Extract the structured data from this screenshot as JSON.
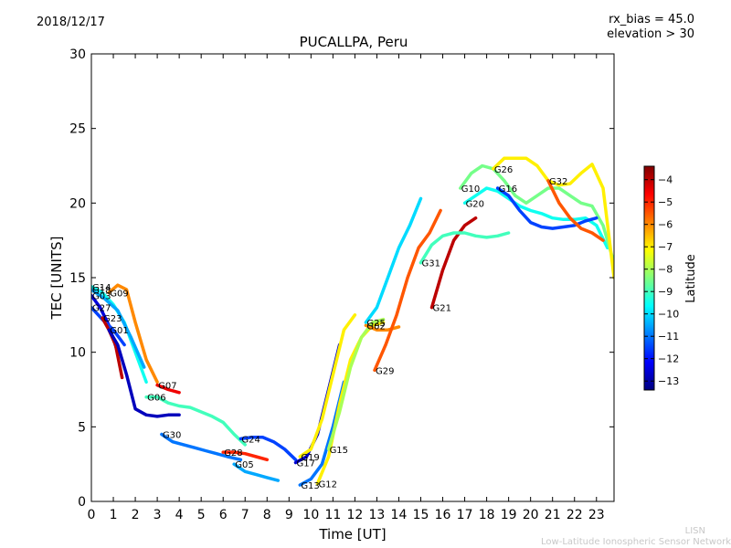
{
  "header": {
    "date": "2018/12/17",
    "title": "PUCALLPA, Peru",
    "rx_bias": "rx_bias = 45.0",
    "elevation": "elevation > 30"
  },
  "footer": {
    "credit_line1": "LISN",
    "credit_line2": "Low-Latitude Ionospheric Sensor Network"
  },
  "colorbar": {
    "label": "Latitude",
    "ticks": [
      -4,
      -5,
      -6,
      -7,
      -8,
      -9,
      -10,
      -11,
      -12,
      -13
    ],
    "range": [
      -13.4,
      -3.4
    ],
    "colormap": [
      "#00007f",
      "#0000ff",
      "#007fff",
      "#00ffff",
      "#7fff7f",
      "#ffff00",
      "#ff7f00",
      "#ff0000",
      "#7f0000"
    ]
  },
  "chart_data": {
    "type": "scatter",
    "title": "PUCALLPA, Peru",
    "xlabel": "Time [UT]",
    "ylabel": "TEC [UNITS]",
    "xlim": [
      0,
      23.8
    ],
    "ylim": [
      0,
      30
    ],
    "xticks": [
      0,
      1,
      2,
      3,
      4,
      5,
      6,
      7,
      8,
      9,
      10,
      11,
      12,
      13,
      14,
      15,
      16,
      17,
      18,
      19,
      20,
      21,
      22,
      23
    ],
    "yticks": [
      0,
      5,
      10,
      15,
      20,
      25,
      30
    ],
    "grid": false,
    "series": [
      {
        "name": "G14",
        "lat": -9.5,
        "x": [
          0,
          0.5,
          1,
          1.5,
          2,
          2.5
        ],
        "y": [
          14.4,
          14,
          13.2,
          12,
          10,
          8
        ]
      },
      {
        "name": "G18",
        "lat": -10.5,
        "x": [
          0,
          0.6,
          1.2,
          1.8,
          2.4
        ],
        "y": [
          14.2,
          13.6,
          12.8,
          11,
          9
        ]
      },
      {
        "name": "G03",
        "lat": -12.5,
        "x": [
          0,
          0.4,
          0.8,
          1.2
        ],
        "y": [
          13.8,
          13,
          11.8,
          10
        ]
      },
      {
        "name": "G27",
        "lat": -11.5,
        "x": [
          0,
          0.5,
          1,
          1.5
        ],
        "y": [
          13,
          12.2,
          11.5,
          10.5
        ]
      },
      {
        "name": "G09",
        "lat": -6,
        "x": [
          0.8,
          1.2,
          1.6,
          2,
          2.5,
          3
        ],
        "y": [
          14,
          14.5,
          14.2,
          12,
          9.5,
          8
        ]
      },
      {
        "name": "G23",
        "lat": -4,
        "x": [
          0.5,
          0.8,
          1.1,
          1.4
        ],
        "y": [
          12.3,
          11.5,
          10.5,
          8.3
        ]
      },
      {
        "name": "G01",
        "lat": -12.8,
        "x": [
          0.8,
          1.2,
          1.6,
          2,
          2.5,
          3,
          3.5,
          4
        ],
        "y": [
          11.5,
          10.5,
          8.5,
          6.2,
          5.8,
          5.7,
          5.8,
          5.8
        ]
      },
      {
        "name": "G07",
        "lat": -4.5,
        "x": [
          3,
          3.5,
          4
        ],
        "y": [
          7.8,
          7.5,
          7.3
        ]
      },
      {
        "name": "G06",
        "lat": -9,
        "x": [
          2.5,
          3,
          3.5,
          4,
          4.5,
          5,
          5.5,
          6,
          6.5,
          7
        ],
        "y": [
          7,
          7,
          6.6,
          6.4,
          6.3,
          6,
          5.7,
          5.3,
          4.5,
          3.8
        ]
      },
      {
        "name": "G30",
        "lat": -11,
        "x": [
          3.2,
          3.7,
          4.2,
          4.7,
          5.2,
          5.7,
          6.2,
          6.8
        ],
        "y": [
          4.5,
          4,
          3.8,
          3.6,
          3.4,
          3.2,
          3,
          2.8
        ]
      },
      {
        "name": "G28",
        "lat": -5,
        "x": [
          6,
          6.5,
          7,
          7.5,
          8
        ],
        "y": [
          3.3,
          3.3,
          3.2,
          3,
          2.8
        ]
      },
      {
        "name": "G05",
        "lat": -10.5,
        "x": [
          6.5,
          7,
          7.5,
          8,
          8.5
        ],
        "y": [
          2.5,
          2,
          1.8,
          1.6,
          1.4
        ]
      },
      {
        "name": "G24",
        "lat": -11.5,
        "x": [
          6.8,
          7.3,
          7.8,
          8.3,
          8.8,
          9.3
        ],
        "y": [
          4.2,
          4.3,
          4.3,
          4,
          3.5,
          2.8
        ]
      },
      {
        "name": "G17",
        "lat": -12.6,
        "x": [
          9.3,
          9.8,
          10.3,
          10.8,
          11.3
        ],
        "y": [
          2.6,
          3,
          4.5,
          7.5,
          10.5
        ]
      },
      {
        "name": "G19",
        "lat": -7,
        "x": [
          9.5,
          10,
          10.5,
          11,
          11.5,
          12
        ],
        "y": [
          3,
          3.5,
          5.5,
          8.5,
          11.5,
          12.5
        ]
      },
      {
        "name": "G13",
        "lat": -11,
        "x": [
          9.5,
          10,
          10.5,
          11,
          11.5
        ],
        "y": [
          1.1,
          1.5,
          2.5,
          5,
          8
        ]
      },
      {
        "name": "G12",
        "lat": -7,
        "x": [
          10.3,
          10.8,
          11.3,
          11.8,
          12.3,
          12.8,
          13.3
        ],
        "y": [
          1.2,
          3,
          6.5,
          9.5,
          11,
          11.8,
          12
        ]
      },
      {
        "name": "G15",
        "lat": -8,
        "x": [
          10.8,
          11.3,
          11.8,
          12.3,
          12.8,
          13.3
        ],
        "y": [
          3.5,
          6,
          9,
          11,
          12,
          12.2
        ]
      },
      {
        "name": "G02",
        "lat": -6,
        "x": [
          12.5,
          13,
          13.5,
          14
        ],
        "y": [
          11.8,
          11.5,
          11.5,
          11.7
        ]
      },
      {
        "name": "G29",
        "lat": -5.5,
        "x": [
          12.9,
          13.4,
          13.9,
          14.4,
          14.9,
          15.4,
          15.9
        ],
        "y": [
          8.8,
          10.5,
          12.5,
          15,
          17,
          18,
          19.5
        ]
      },
      {
        "name": "G25",
        "lat": -10,
        "x": [
          12.5,
          13,
          13.5,
          14,
          14.5,
          15
        ],
        "y": [
          12,
          13,
          15,
          17,
          18.5,
          20.3
        ]
      },
      {
        "name": "G21",
        "lat": -4,
        "x": [
          15.5,
          16,
          16.5,
          17,
          17.5
        ],
        "y": [
          13,
          15.5,
          17.5,
          18.5,
          19
        ]
      },
      {
        "name": "G31",
        "lat": -9,
        "x": [
          15,
          15.5,
          16,
          16.5,
          17,
          17.5,
          18,
          18.5,
          19
        ],
        "y": [
          16,
          17.2,
          17.8,
          18,
          18,
          17.8,
          17.7,
          17.8,
          18
        ]
      },
      {
        "name": "G20",
        "lat": -9.5,
        "x": [
          17,
          17.5,
          18,
          18.5,
          19,
          19.5,
          20,
          20.5,
          21,
          21.5,
          22,
          22.5,
          23,
          23.5
        ],
        "y": [
          20,
          20.5,
          21,
          20.8,
          20.3,
          19.8,
          19.5,
          19.3,
          19,
          18.9,
          18.9,
          19,
          18.5,
          17
        ]
      },
      {
        "name": "G10",
        "lat": -8.5,
        "x": [
          16.8,
          17.3,
          17.8,
          18.3,
          18.8,
          19.3,
          19.8,
          20.3,
          20.8,
          21.3,
          21.8,
          22.3,
          22.8,
          23.3,
          23.8
        ],
        "y": [
          21,
          22,
          22.5,
          22.3,
          21.5,
          20.5,
          20,
          20.5,
          21,
          21,
          20.5,
          20,
          19.8,
          18.5,
          16
        ]
      },
      {
        "name": "G26",
        "lat": -7,
        "x": [
          18.3,
          18.8,
          19.3,
          19.8,
          20.3,
          20.8,
          21.3,
          21.8,
          22.3,
          22.8,
          23.3,
          23.8
        ],
        "y": [
          22.3,
          23,
          23,
          23,
          22.5,
          21.5,
          21.2,
          21.3,
          22,
          22.6,
          21,
          15
        ]
      },
      {
        "name": "G16",
        "lat": -11.5,
        "x": [
          18.5,
          19,
          19.5,
          20,
          20.5,
          21,
          21.5,
          22,
          22.5,
          23
        ],
        "y": [
          21,
          20.5,
          19.5,
          18.7,
          18.4,
          18.3,
          18.4,
          18.5,
          18.8,
          19
        ]
      },
      {
        "name": "G32",
        "lat": -5.5,
        "x": [
          20.8,
          21.3,
          21.8,
          22.3,
          22.8,
          23.3
        ],
        "y": [
          21.5,
          20,
          19,
          18.3,
          18,
          17.5
        ]
      }
    ]
  }
}
